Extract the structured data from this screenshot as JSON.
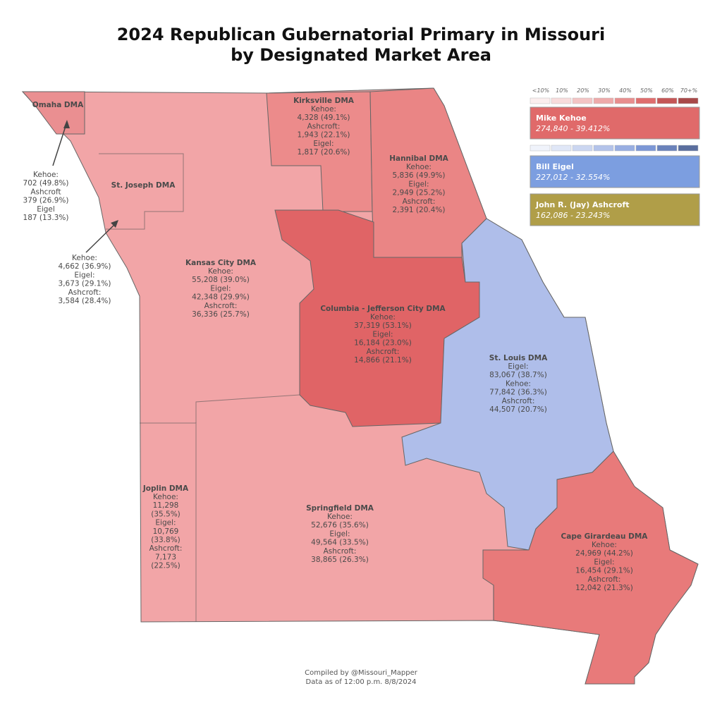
{
  "title": [
    "2024 Republican Gubernatorial Primary in Missouri",
    "by Designated Market Area"
  ],
  "scale_labels": [
    "<10%",
    "10%",
    "20%",
    "30%",
    "40%",
    "50%",
    "60%",
    "70+%"
  ],
  "candidates": [
    {
      "name": "Mike Kehoe",
      "total": "274,840 - 39.412%"
    },
    {
      "name": "Bill Eigel",
      "total": "227,012 - 32.554%"
    },
    {
      "name": "John R. (Jay) Ashcroft",
      "total": "162,086 - 23.243%"
    }
  ],
  "regions": [
    {
      "name": "Omaha DMA",
      "results": [
        "Kehoe:",
        "702 (49.8%)",
        "Ashcroft",
        "379 (26.9%)",
        "Eigel",
        "187 (13.3%)"
      ]
    },
    {
      "name": "St. Joseph DMA",
      "results": [
        "Kehoe:",
        "4,662 (36.9%)",
        "Eigel:",
        "3,673 (29.1%)",
        "Ashcroft:",
        "3,584 (28.4%)"
      ]
    },
    {
      "name": "Kansas City DMA",
      "results": [
        "Kehoe:",
        "55,208 (39.0%)",
        "Eigel:",
        "42,348 (29.9%)",
        "Ashcroft:",
        "36,336 (25.7%)"
      ]
    },
    {
      "name": "Kirksville DMA",
      "results": [
        "Kehoe:",
        "4,328 (49.1%)",
        "Ashcroft:",
        "1,943 (22.1%)",
        "Eigel:",
        "1,817 (20.6%)"
      ]
    },
    {
      "name": "Hannibal DMA",
      "results": [
        "Kehoe:",
        "5,836 (49.9%)",
        "Eigel:",
        "2,949 (25.2%)",
        "Ashcroft:",
        "2,391 (20.4%)"
      ]
    },
    {
      "name": "Columbia - Jefferson City DMA",
      "results": [
        "Kehoe:",
        "37,319 (53.1%)",
        "Eigel:",
        "16,184 (23.0%)",
        "Ashcroft:",
        "14,866 (21.1%)"
      ]
    },
    {
      "name": "St. Louis DMA",
      "results": [
        "Eigel:",
        "83,067 (38.7%)",
        "Kehoe:",
        "77,842 (36.3%)",
        "Ashcroft:",
        "44,507 (20.7%)"
      ]
    },
    {
      "name": "Joplin DMA",
      "results": [
        "Kehoe:",
        "11,298",
        "(35.5%)",
        "Eigel:",
        "10,769",
        "(33.8%)",
        "Ashcroft:",
        "7,173",
        "(22.5%)"
      ]
    },
    {
      "name": "Springfield DMA",
      "results": [
        "Kehoe:",
        "52,676 (35.6%)",
        "Eigel:",
        "49,564 (33.5%)",
        "Ashcroft:",
        "38,865 (26.3%)"
      ]
    },
    {
      "name": "Cape Girardeau DMA",
      "results": [
        "Kehoe:",
        "24,969 (44.2%)",
        "Eigel:",
        "16,454 (29.1%)",
        "Ashcroft:",
        "12,042 (21.3%)"
      ]
    }
  ],
  "footer": [
    "Compiled by @Missouri_Mapper",
    "Data as of 12:00 p.m. 8/8/2024"
  ]
}
